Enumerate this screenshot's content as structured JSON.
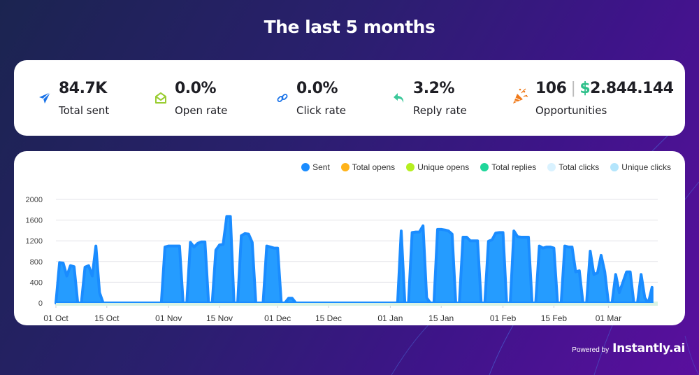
{
  "header": {
    "title": "The last 5 months"
  },
  "stats": [
    {
      "icon": "paper-plane-icon",
      "value": "84.7K",
      "label": "Total sent",
      "color": "#1a73e8"
    },
    {
      "icon": "open-envelope-icon",
      "value": "0.0%",
      "label": "Open rate",
      "color": "#9acd32"
    },
    {
      "icon": "link-icon",
      "value": "0.0%",
      "label": "Click rate",
      "color": "#1a73e8"
    },
    {
      "icon": "reply-arrow-icon",
      "value": "3.2%",
      "label": "Reply rate",
      "color": "#3cc89a"
    },
    {
      "icon": "party-popper-icon",
      "count": "106",
      "separator": "|",
      "currency": "$",
      "amount": "2.844.144",
      "label": "Opportunities",
      "color": "#f07a1a"
    }
  ],
  "footer": {
    "powered_by": "Powered by",
    "brand": "Instantly.ai"
  },
  "chart_data": {
    "type": "area",
    "title": "",
    "xlabel": "",
    "ylabel": "",
    "ylim": [
      0,
      2000
    ],
    "yticks": [
      "0",
      "400",
      "800",
      "1200",
      "1600",
      "2000"
    ],
    "ytick_values": [
      0,
      400,
      800,
      1200,
      1600,
      2000
    ],
    "xticks": [
      "01 Oct",
      "15 Oct",
      "01 Nov",
      "15 Nov",
      "01 Dec",
      "15 Dec",
      "01 Jan",
      "15 Jan",
      "01 Feb",
      "15 Feb",
      "01 Mar"
    ],
    "xtick_days": [
      0,
      14,
      31,
      45,
      61,
      75,
      92,
      106,
      123,
      137,
      152
    ],
    "x_unit": "days since 01 Oct",
    "grid": true,
    "legend_position": "top-right",
    "legend": [
      {
        "name": "Sent",
        "color": "#1a8cff"
      },
      {
        "name": "Total opens",
        "color": "#ffb31a"
      },
      {
        "name": "Unique opens",
        "color": "#b5ef1f"
      },
      {
        "name": "Total replies",
        "color": "#1fd69a"
      },
      {
        "name": "Total clicks",
        "color": "#d9f2ff"
      },
      {
        "name": "Unique clicks",
        "color": "#b3e5fc"
      }
    ],
    "series": [
      {
        "name": "Sent",
        "color": "#1a8cff",
        "values": [
          0,
          780,
          770,
          520,
          720,
          700,
          0,
          0,
          690,
          720,
          520,
          1100,
          200,
          0,
          0,
          0,
          0,
          0,
          0,
          0,
          0,
          0,
          0,
          0,
          0,
          0,
          0,
          0,
          0,
          0,
          1080,
          1100,
          1100,
          1100,
          1100,
          0,
          0,
          1170,
          1080,
          1150,
          1180,
          1180,
          0,
          0,
          1020,
          1120,
          1130,
          1670,
          1670,
          0,
          0,
          1300,
          1340,
          1330,
          1170,
          0,
          0,
          0,
          1100,
          1080,
          1060,
          1060,
          0,
          0,
          90,
          90,
          0,
          0,
          0,
          0,
          0,
          0,
          0,
          0,
          0,
          0,
          0,
          0,
          0,
          0,
          0,
          0,
          0,
          0,
          0,
          0,
          0,
          0,
          0,
          0,
          0,
          0,
          0,
          0,
          0,
          1390,
          0,
          0,
          1360,
          1370,
          1370,
          1490,
          100,
          0,
          0,
          1420,
          1420,
          1410,
          1390,
          1330,
          0,
          0,
          1270,
          1270,
          1200,
          1200,
          1200,
          0,
          0,
          1190,
          1220,
          1350,
          1360,
          1360,
          0,
          0,
          1390,
          1280,
          1270,
          1270,
          1270,
          0,
          0,
          1100,
          1060,
          1080,
          1080,
          1060,
          0,
          0,
          1100,
          1080,
          1080,
          600,
          620,
          0,
          0,
          1000,
          550,
          580,
          920,
          600,
          0,
          0,
          550,
          200,
          400,
          600,
          600,
          0,
          0,
          550,
          100,
          0,
          300
        ]
      },
      {
        "name": "Total opens",
        "color": "#ffb31a",
        "values": []
      },
      {
        "name": "Unique opens",
        "color": "#b5ef1f",
        "values": []
      },
      {
        "name": "Total replies",
        "color": "#1fd69a",
        "values": []
      },
      {
        "name": "Total clicks",
        "color": "#d9f2ff",
        "values": []
      },
      {
        "name": "Unique clicks",
        "color": "#b3e5fc",
        "values": []
      }
    ]
  }
}
